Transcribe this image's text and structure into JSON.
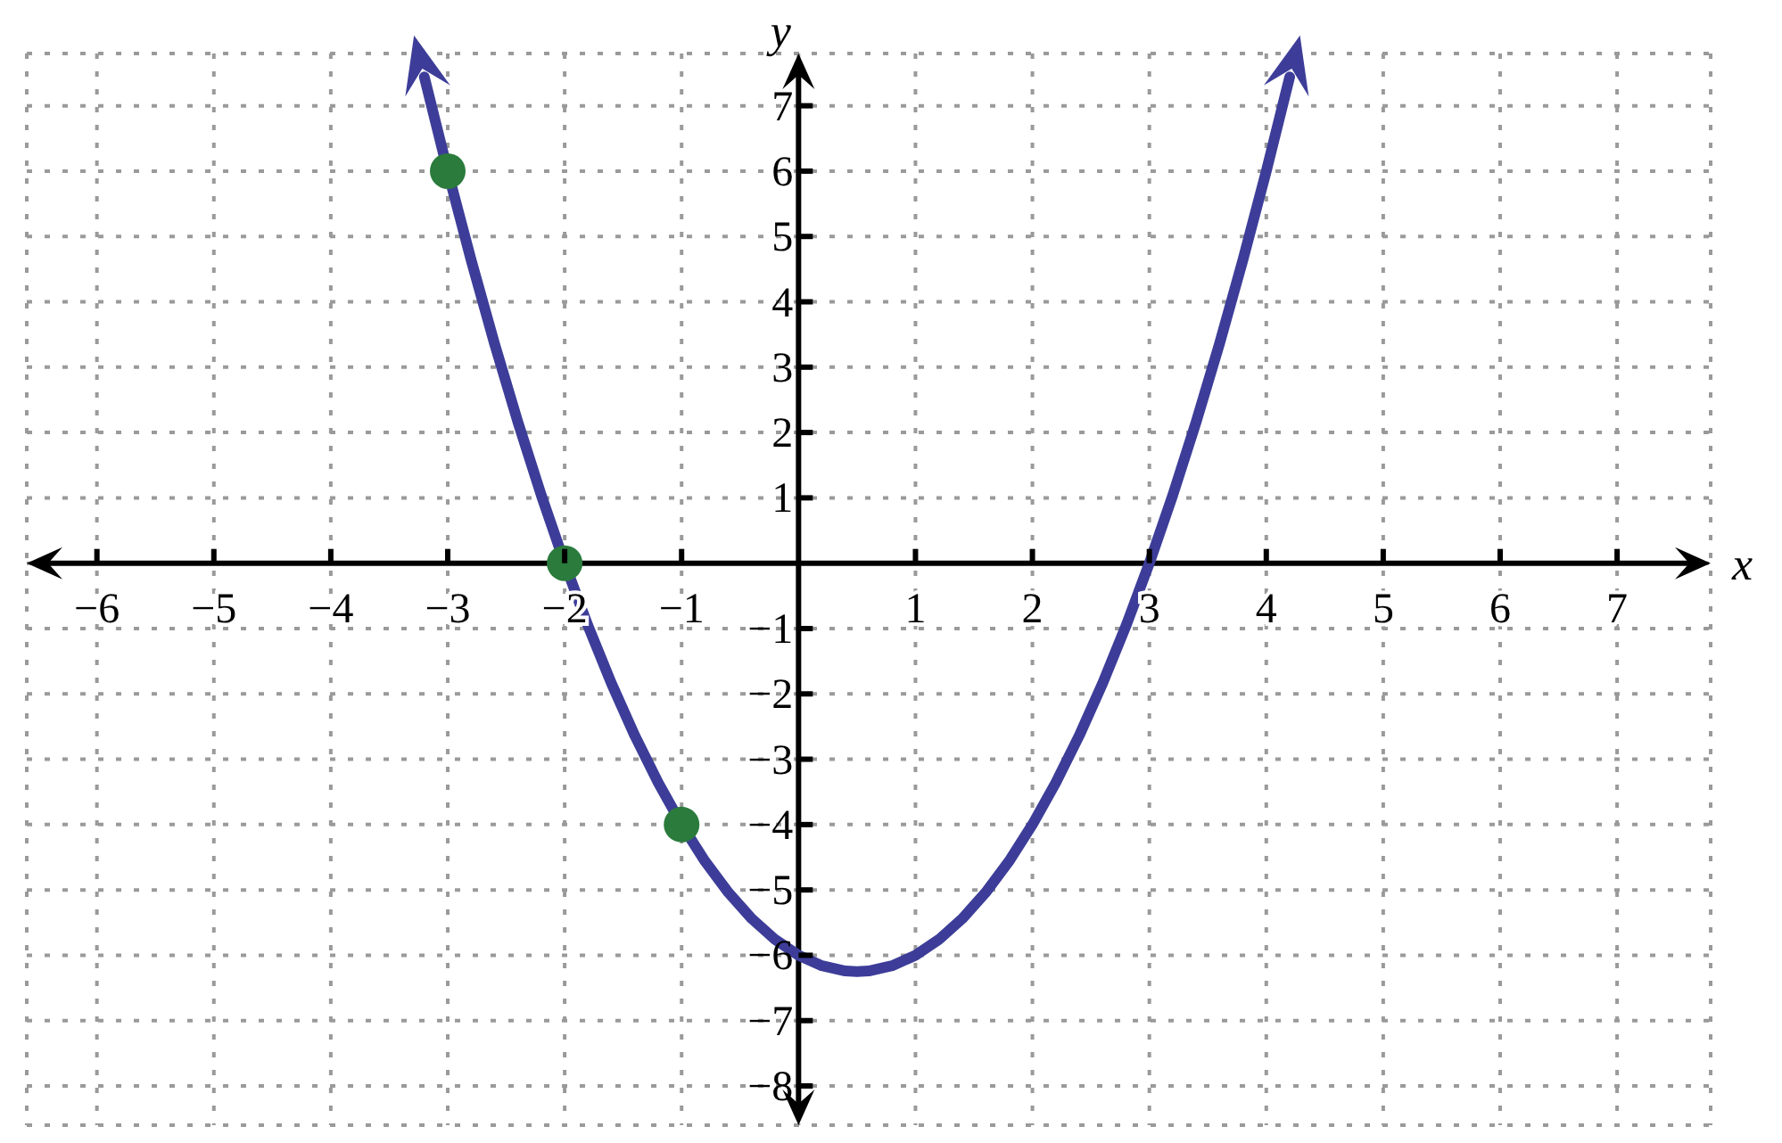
{
  "chart_data": {
    "type": "line",
    "xlabel": "x",
    "ylabel": "y",
    "xlim": [
      -6.6,
      7.8
    ],
    "ylim": [
      -8.6,
      7.8
    ],
    "xticks": [
      {
        "value": -6,
        "label": "−6"
      },
      {
        "value": -5,
        "label": "−5"
      },
      {
        "value": -4,
        "label": "−4"
      },
      {
        "value": -3,
        "label": "−3"
      },
      {
        "value": -2,
        "label": "−2"
      },
      {
        "value": -1,
        "label": "−1"
      },
      {
        "value": 0,
        "label": null
      },
      1,
      2,
      3,
      4,
      5,
      6,
      7
    ],
    "yticks": [
      {
        "value": -8,
        "label": "−8"
      },
      {
        "value": -7,
        "label": "−7"
      },
      {
        "value": -6,
        "label": "−6"
      },
      {
        "value": -5,
        "label": "−5"
      },
      {
        "value": -4,
        "label": "−4"
      },
      {
        "value": -3,
        "label": "−3"
      },
      {
        "value": -2,
        "label": "−2"
      },
      {
        "value": -1,
        "label": "−1"
      },
      {
        "value": 0,
        "label": null
      },
      1,
      2,
      3,
      4,
      5,
      6,
      7
    ],
    "grid": true,
    "series": [
      {
        "color": "#3d3d99",
        "x": [
          -3.2,
          -3,
          -2.8,
          -2.6,
          -2.4,
          -2.2,
          -2,
          -1.8,
          -1.6,
          -1.4,
          -1.2,
          -1,
          -0.8,
          -0.6,
          -0.4,
          -0.2,
          0,
          0.2,
          0.4,
          0.5,
          0.6,
          0.8,
          1,
          1.2,
          1.4,
          1.6,
          1.8,
          2,
          2.2,
          2.4,
          2.6,
          2.8,
          3,
          3.2,
          3.4,
          3.6,
          3.8,
          4,
          4.2
        ],
        "values": [
          7.44,
          6,
          4.64,
          3.36,
          2.16,
          1.04,
          0,
          -0.96,
          -1.84,
          -2.64,
          -3.36,
          -4,
          -4.56,
          -5.04,
          -5.44,
          -5.76,
          -6,
          -6.16,
          -6.24,
          -6.25,
          -6.24,
          -6.16,
          -6,
          -5.76,
          -5.44,
          -5.04,
          -4.56,
          -4,
          -3.36,
          -2.64,
          -1.84,
          -0.96,
          0,
          1.04,
          2.16,
          3.36,
          4.64,
          6,
          7.44
        ]
      },
      {
        "type": "scatter",
        "color": "#2a7b3c",
        "x": [
          -3,
          -2,
          -1
        ],
        "values": [
          6,
          0,
          -4
        ]
      }
    ]
  }
}
